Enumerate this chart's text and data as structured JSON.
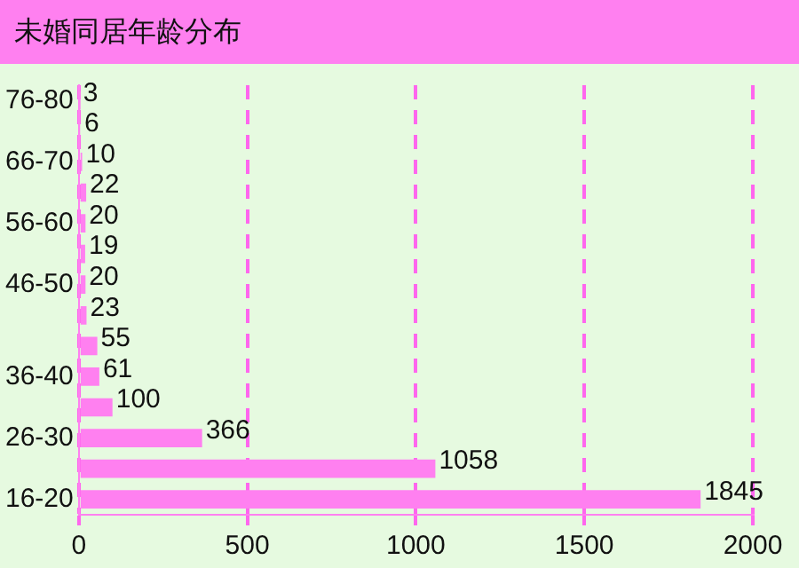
{
  "chart_data": {
    "type": "bar",
    "title": "未婚同居年龄分布",
    "orientation": "horizontal",
    "categories": [
      "76-80",
      null,
      "66-70",
      null,
      "56-60",
      null,
      "46-50",
      null,
      null,
      "36-40",
      null,
      "26-30",
      null,
      "16-20"
    ],
    "values": [
      3,
      6,
      10,
      22,
      20,
      19,
      20,
      23,
      55,
      61,
      100,
      366,
      1058,
      1845
    ],
    "color": "#ff80f0",
    "xlim": [
      0,
      2000
    ],
    "xticks": [
      0,
      500,
      1000,
      1500,
      2000
    ],
    "grid": "x",
    "data_labels": true,
    "legend": false
  }
}
